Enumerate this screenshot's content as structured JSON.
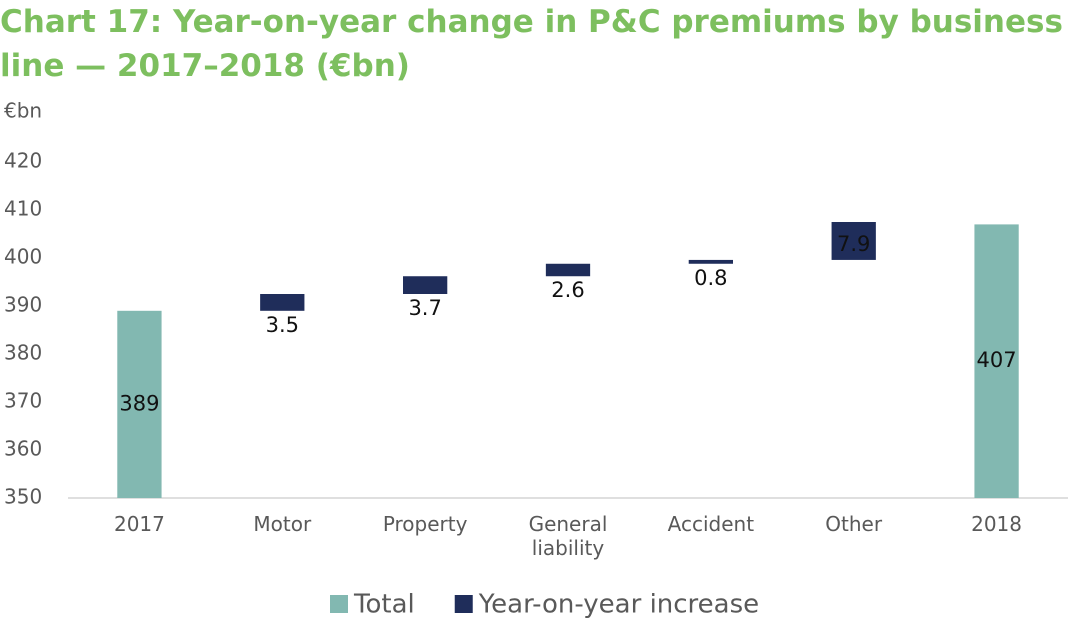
{
  "chart_data": {
    "type": "waterfall",
    "title": "Chart 17: Year-on-year change in P&C premiums by business line — 2017–2018 (€bn)",
    "y_axis_label": "€bn",
    "categories": [
      "2017",
      "Motor",
      "Property",
      "General liability",
      "Accident",
      "Other",
      "2018"
    ],
    "series": [
      {
        "name": "Total",
        "color": "#82b8b1",
        "values": [
          389,
          null,
          null,
          null,
          null,
          null,
          407
        ]
      },
      {
        "name": "Year-on-year increase",
        "color": "#1f2d5a",
        "values": [
          null,
          3.5,
          3.7,
          2.6,
          0.8,
          7.9,
          null
        ]
      }
    ],
    "ylim": [
      350,
      430
    ],
    "yticks": [
      350,
      360,
      370,
      380,
      390,
      400,
      410,
      420
    ],
    "legend": "bottom"
  }
}
